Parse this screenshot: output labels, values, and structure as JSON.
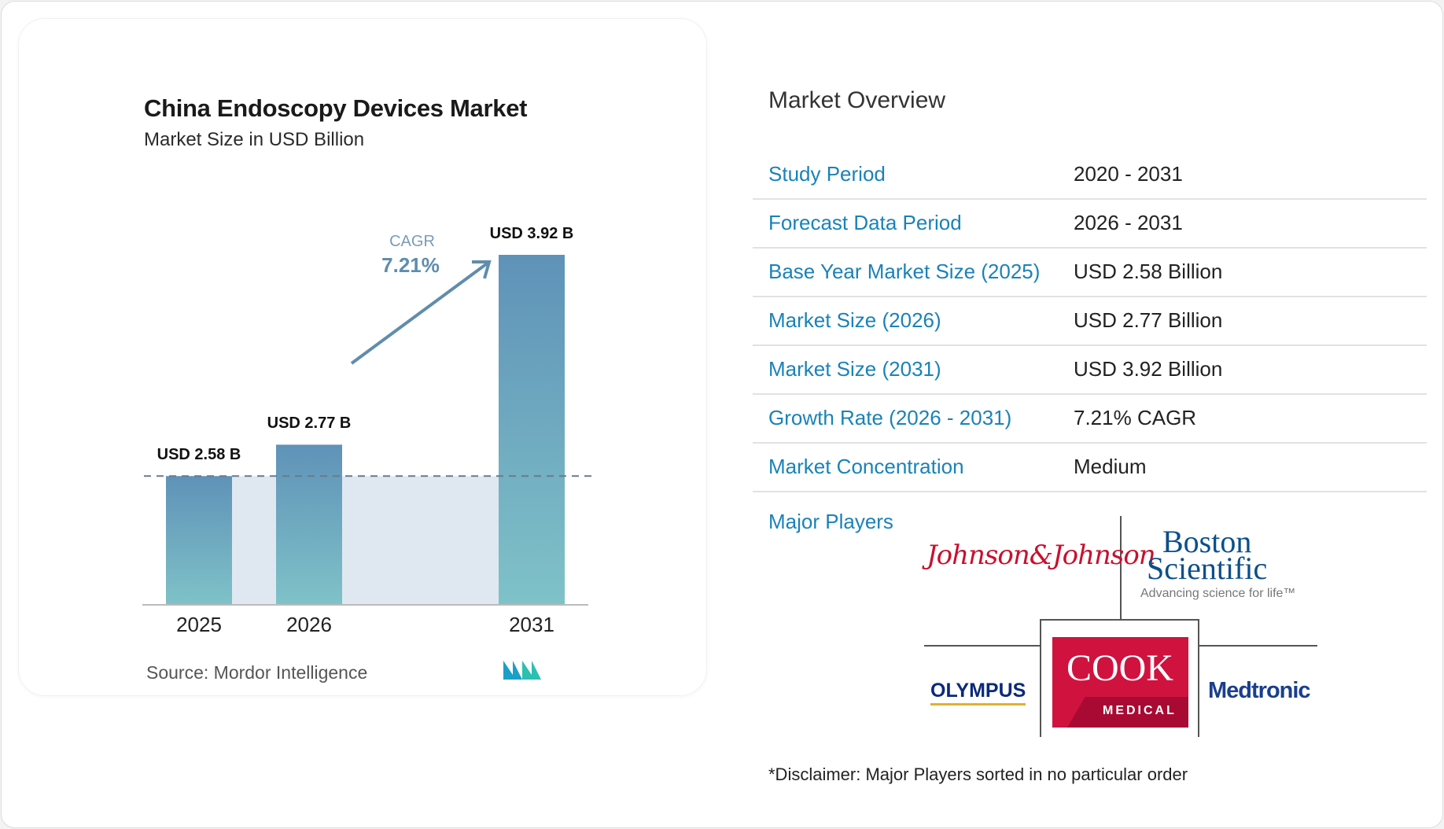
{
  "chart_data": {
    "type": "bar",
    "title": "China Endoscopy Devices Market",
    "subtitle": "Market Size in USD Billion",
    "categories": [
      "2025",
      "2026",
      "2031"
    ],
    "values": [
      2.58,
      2.77,
      3.92
    ],
    "data_labels": [
      "USD 2.58 B",
      "USD 2.77 B",
      "USD 3.92 B"
    ],
    "annotation": {
      "label": "CAGR",
      "value": "7.21%"
    },
    "colors": {
      "bar_top": "#5f92b8",
      "bar_bottom": "#7fc2c8",
      "shade": "#dfe8f0",
      "arrow": "#5f8dad"
    },
    "grid": false
  },
  "source": "Source:  Mordor Intelligence",
  "overview": {
    "title": "Market Overview",
    "rows": [
      {
        "label": "Study Period",
        "value": "2020 - 2031"
      },
      {
        "label": "Forecast Data Period",
        "value": "2026 - 2031"
      },
      {
        "label": "Base Year Market Size (2025)",
        "value": "USD 2.58 Billion"
      },
      {
        "label": "Market Size (2026)",
        "value": "USD 2.77 Billion"
      },
      {
        "label": "Market Size (2031)",
        "value": "USD 3.92 Billion"
      },
      {
        "label": "Growth Rate (2026 - 2031)",
        "value": "7.21% CAGR"
      },
      {
        "label": "Market Concentration",
        "value": "Medium"
      }
    ],
    "major_players_label": "Major Players",
    "players": [
      "Johnson & Johnson",
      "Boston Scientific",
      "Olympus",
      "Cook Medical",
      "Medtronic"
    ],
    "logo_text": {
      "jj": "Johnson&Johnson",
      "bs1": "Boston",
      "bs2": "Scientific",
      "bs_tag": "Advancing science for life™",
      "olympus": "OLYMPUS",
      "cook": "COOK",
      "cook_sub": "MEDICAL",
      "medtronic": "Medtronic"
    },
    "disclaimer": "*Disclaimer: Major Players sorted in no particular order"
  }
}
